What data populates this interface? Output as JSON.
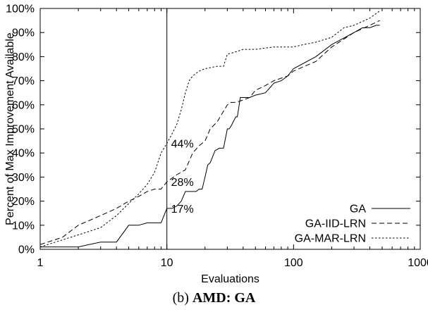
{
  "chart_data": {
    "type": "line",
    "xscale": "log",
    "xlim": [
      1,
      1000
    ],
    "ylim": [
      0,
      100
    ],
    "xlabel": "Evaluations",
    "ylabel": "Percent of Max Improvement Available",
    "x_ticks": [
      "1",
      "10",
      "100",
      "1000"
    ],
    "y_ticks": [
      "0%",
      "10%",
      "20%",
      "30%",
      "40%",
      "50%",
      "60%",
      "70%",
      "80%",
      "90%",
      "100%"
    ],
    "grid": false,
    "legend_position": "bottom-right",
    "vertical_line_x": 10,
    "annotations": [
      {
        "text": "44%",
        "x": 10,
        "y": 44
      },
      {
        "text": "28%",
        "x": 10,
        "y": 28
      },
      {
        "text": "17%",
        "x": 10,
        "y": 17
      }
    ],
    "series": [
      {
        "name": "GA",
        "dash": "solid",
        "points": [
          [
            1,
            1
          ],
          [
            2,
            1
          ],
          [
            3,
            3
          ],
          [
            4,
            3
          ],
          [
            5,
            10
          ],
          [
            6,
            10
          ],
          [
            7,
            11
          ],
          [
            8,
            11
          ],
          [
            9,
            11
          ],
          [
            10,
            17
          ],
          [
            11,
            17
          ],
          [
            12,
            18
          ],
          [
            13,
            20
          ],
          [
            14,
            24
          ],
          [
            15,
            24
          ],
          [
            16,
            24
          ],
          [
            17,
            24
          ],
          [
            18,
            25
          ],
          [
            19,
            25
          ],
          [
            20,
            30
          ],
          [
            21,
            35
          ],
          [
            22,
            36
          ],
          [
            24,
            41
          ],
          [
            26,
            42
          ],
          [
            28,
            42
          ],
          [
            30,
            50
          ],
          [
            31,
            50
          ],
          [
            32,
            51
          ],
          [
            35,
            55
          ],
          [
            36,
            55
          ],
          [
            38,
            63
          ],
          [
            45,
            63
          ],
          [
            50,
            64
          ],
          [
            60,
            65
          ],
          [
            70,
            69
          ],
          [
            80,
            70
          ],
          [
            90,
            72
          ],
          [
            100,
            75
          ],
          [
            150,
            80
          ],
          [
            200,
            85
          ],
          [
            300,
            90
          ],
          [
            350,
            92
          ],
          [
            400,
            92
          ],
          [
            450,
            93
          ],
          [
            480,
            93
          ]
        ]
      },
      {
        "name": "GA-IID-LRN",
        "dash": "dashed",
        "points": [
          [
            1,
            2
          ],
          [
            1.5,
            5
          ],
          [
            2,
            10
          ],
          [
            3,
            14
          ],
          [
            4,
            17
          ],
          [
            5,
            20
          ],
          [
            6,
            22
          ],
          [
            7,
            24
          ],
          [
            8,
            25
          ],
          [
            9,
            25
          ],
          [
            10,
            28
          ],
          [
            12,
            31
          ],
          [
            14,
            33
          ],
          [
            16,
            40
          ],
          [
            18,
            43
          ],
          [
            20,
            45
          ],
          [
            22,
            50
          ],
          [
            25,
            53
          ],
          [
            30,
            60
          ],
          [
            32,
            61
          ],
          [
            35,
            61
          ],
          [
            40,
            62
          ],
          [
            45,
            63
          ],
          [
            50,
            66
          ],
          [
            60,
            68
          ],
          [
            70,
            70
          ],
          [
            90,
            72
          ],
          [
            100,
            74
          ],
          [
            150,
            78
          ],
          [
            200,
            84
          ],
          [
            300,
            90
          ],
          [
            400,
            93
          ],
          [
            480,
            95
          ]
        ]
      },
      {
        "name": "GA-MAR-LRN",
        "dash": "dotted",
        "points": [
          [
            1,
            1
          ],
          [
            2,
            6
          ],
          [
            3,
            9
          ],
          [
            4,
            14
          ],
          [
            5,
            19
          ],
          [
            6,
            23
          ],
          [
            7,
            27
          ],
          [
            8,
            32
          ],
          [
            9,
            40
          ],
          [
            10,
            44
          ],
          [
            11,
            48
          ],
          [
            12,
            52
          ],
          [
            13,
            58
          ],
          [
            14,
            65
          ],
          [
            15,
            70
          ],
          [
            16,
            72
          ],
          [
            18,
            74
          ],
          [
            20,
            75
          ],
          [
            25,
            76
          ],
          [
            28,
            76
          ],
          [
            30,
            81
          ],
          [
            35,
            82
          ],
          [
            40,
            83
          ],
          [
            50,
            83
          ],
          [
            70,
            84
          ],
          [
            100,
            84
          ],
          [
            120,
            85
          ],
          [
            150,
            86
          ],
          [
            200,
            88
          ],
          [
            250,
            92
          ],
          [
            300,
            93
          ],
          [
            400,
            96
          ],
          [
            480,
            99
          ]
        ]
      }
    ]
  },
  "caption": {
    "prefix": "(b) ",
    "bold": "AMD: GA"
  }
}
